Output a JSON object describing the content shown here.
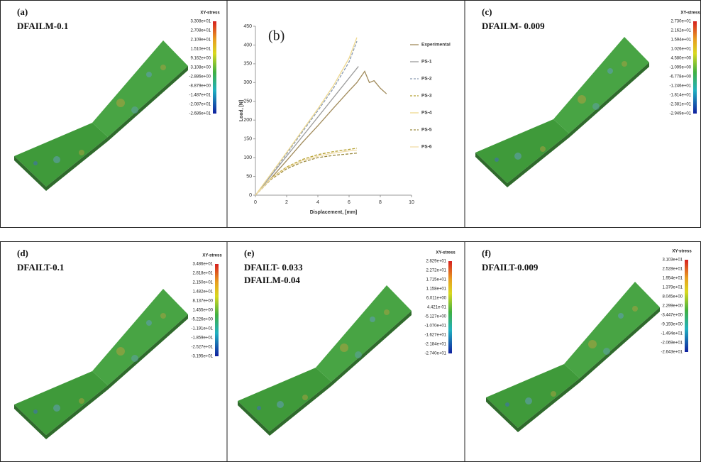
{
  "panels": [
    {
      "label": "(a)",
      "caption": [
        "DFAILM-0.1"
      ],
      "colorbar": {
        "title": "XY-stress",
        "labels": [
          "3.308e+01",
          "2.708e+01",
          "2.109e+01",
          "1.510e+01",
          "9.162e+00",
          "3.108e+00",
          "-2.886e+00",
          "-8.879e+00",
          "-1.487e+01",
          "-2.087e+01",
          "-2.686e+01"
        ]
      }
    },
    {
      "label": "(c)",
      "caption": [
        "DFAILM- 0.009"
      ],
      "colorbar": {
        "title": "XY-stress",
        "labels": [
          "2.730e+01",
          "2.162e+01",
          "1.594e+01",
          "1.026e+01",
          "4.580e+00",
          "-1.099e+00",
          "-6.778e+00",
          "-1.246e+01",
          "-1.814e+01",
          "-2.381e+01",
          "-2.949e+01"
        ]
      }
    },
    {
      "label": "(d)",
      "caption": [
        "DFAILT-0.1"
      ],
      "colorbar": {
        "title": "XY-stress",
        "labels": [
          "3.486e+01",
          "2.818e+01",
          "2.150e+01",
          "1.482e+01",
          "8.137e+00",
          "1.455e+00",
          "-5.226e+00",
          "-1.191e+01",
          "-1.859e+01",
          "-2.527e+01",
          "-3.195e+01"
        ]
      }
    },
    {
      "label": "(e)",
      "caption": [
        "DFAILT- 0.033",
        "DFAILM-0.04"
      ],
      "colorbar": {
        "title": "XY-stress",
        "labels": [
          "2.829e+01",
          "2.272e+01",
          "1.715e+01",
          "1.158e+01",
          "6.011e+00",
          "4.421e-01",
          "-5.127e+00",
          "-1.070e+01",
          "-1.627e+01",
          "-2.184e+01",
          "-2.740e+01"
        ]
      }
    },
    {
      "label": "(f)",
      "caption": [
        "DFAILT-0.009"
      ],
      "colorbar": {
        "title": "XY-stress",
        "labels": [
          "3.103e+01",
          "2.528e+01",
          "1.954e+01",
          "1.379e+01",
          "8.045e+00",
          "2.299e+00",
          "-3.447e+00",
          "-9.193e+00",
          "-1.494e+01",
          "-2.069e+01",
          "-2.643e+01"
        ]
      }
    }
  ],
  "chart_data": {
    "type": "line",
    "panel_label": "(b)",
    "x_label": "Displacement, [mm]",
    "y_label": "Load, [N]",
    "xlim": [
      0,
      10
    ],
    "xticks": [
      0,
      2,
      4,
      6,
      8,
      10
    ],
    "ylim": [
      0,
      450
    ],
    "yticks": [
      0,
      50,
      100,
      150,
      200,
      250,
      300,
      350,
      400,
      450
    ],
    "series": [
      {
        "name": "Experimental",
        "color": "#a08a5a",
        "dashed": false,
        "x": [
          0,
          1,
          2,
          3,
          4,
          5,
          6,
          6.5,
          7,
          7.3,
          7.6,
          8,
          8.4
        ],
        "values": [
          0,
          45,
          92,
          140,
          185,
          232,
          278,
          300,
          330,
          300,
          305,
          285,
          270
        ]
      },
      {
        "name": "PS-1",
        "color": "#9a9a9a",
        "dashed": false,
        "x": [
          0,
          1,
          2,
          3,
          4,
          5,
          6,
          6.6
        ],
        "values": [
          0,
          52,
          104,
          156,
          208,
          260,
          312,
          343
        ]
      },
      {
        "name": "PS-2",
        "color": "#8a9ab0",
        "dashed": true,
        "x": [
          0,
          1,
          2,
          3,
          4,
          5,
          6,
          6.5
        ],
        "values": [
          0,
          55,
          110,
          168,
          225,
          285,
          355,
          410
        ]
      },
      {
        "name": "PS-3",
        "color": "#b5a030",
        "dashed": true,
        "x": [
          0,
          1,
          2,
          3,
          4,
          5,
          6,
          6.5
        ],
        "values": [
          0,
          45,
          75,
          95,
          108,
          116,
          122,
          125
        ]
      },
      {
        "name": "PS-4",
        "color": "#efd98f",
        "dashed": false,
        "x": [
          0,
          1,
          2,
          3,
          4,
          5,
          6,
          6.5
        ],
        "values": [
          0,
          57,
          114,
          172,
          230,
          292,
          365,
          420
        ]
      },
      {
        "name": "PS-5",
        "color": "#9a8a40",
        "dashed": true,
        "x": [
          0,
          1,
          2,
          3,
          4,
          5,
          6,
          6.5
        ],
        "values": [
          0,
          42,
          70,
          88,
          100,
          106,
          110,
          112
        ]
      },
      {
        "name": "PS-6",
        "color": "#f0dca8",
        "dashed": false,
        "x": [
          0,
          1,
          2,
          3,
          4,
          5,
          6,
          6.5
        ],
        "values": [
          0,
          44,
          73,
          92,
          104,
          112,
          118,
          120
        ]
      }
    ]
  }
}
